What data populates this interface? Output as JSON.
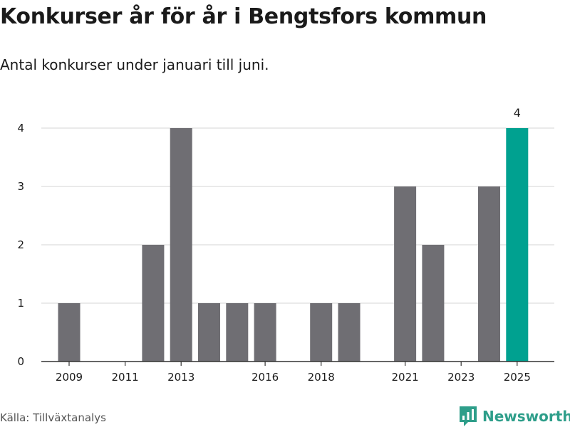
{
  "title": "Konkurser år för år i Bengtsfors kommun",
  "subtitle": "Antal konkurser under januari till juni.",
  "source": "Källa: Tillväxtanalys",
  "brand": {
    "name": "Newsworthy",
    "icon": "newsworthy-logo-icon",
    "color": "#2e9e8a"
  },
  "chart_data": {
    "type": "bar",
    "title": "Konkurser år för år i Bengtsfors kommun",
    "subtitle": "Antal konkurser under januari till juni.",
    "xlabel": "",
    "ylabel": "",
    "x": [
      2009,
      2010,
      2011,
      2012,
      2013,
      2014,
      2015,
      2016,
      2017,
      2018,
      2019,
      2020,
      2021,
      2022,
      2023,
      2024,
      2025
    ],
    "values": [
      1,
      0,
      0,
      2,
      4,
      1,
      1,
      1,
      0,
      1,
      1,
      0,
      3,
      2,
      0,
      3,
      4
    ],
    "highlight_index": 16,
    "highlight_label": "4",
    "ylim": [
      0,
      4
    ],
    "yticks": [
      0,
      1,
      2,
      3,
      4
    ],
    "xticks": [
      2009,
      2011,
      2013,
      2016,
      2018,
      2021,
      2023,
      2025
    ],
    "grid": true,
    "legend": "none",
    "colors": {
      "bar": "#6f6e73",
      "highlight": "#00a190",
      "grid": "#dddddd",
      "axis": "#333333"
    }
  }
}
